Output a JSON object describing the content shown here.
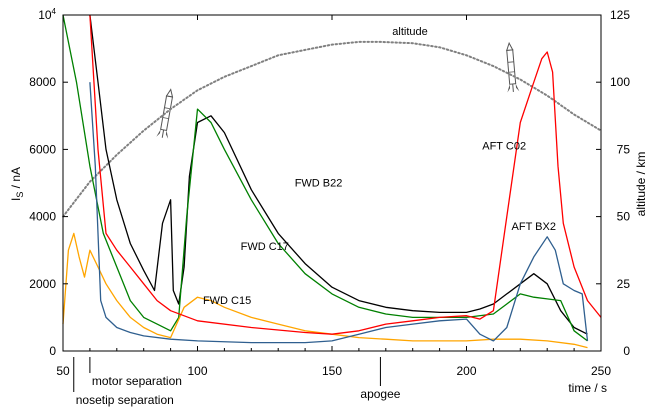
{
  "chart_data": {
    "type": "line",
    "xlabel": "time / s",
    "ylabel_left": "I",
    "ylabel_left_sub": "S",
    "ylabel_left_unit": " / nA",
    "ylabel_right": "altitude / km",
    "xlim": [
      50,
      250
    ],
    "ylim_left": [
      0,
      10000
    ],
    "ylim_right": [
      0,
      125
    ],
    "x_ticks": [
      50,
      100,
      150,
      200,
      250
    ],
    "y_left_ticks": [
      0,
      2000,
      4000,
      6000,
      8000
    ],
    "y_left_top_label_base": "10",
    "y_left_top_label_exp": "4",
    "y_right_ticks": [
      0,
      25,
      50,
      75,
      100,
      125
    ],
    "grid": false,
    "events": [
      {
        "t": 54,
        "label": "nosetip separation"
      },
      {
        "t": 60,
        "label": "motor separation"
      },
      {
        "t": 168,
        "label": "apogee"
      }
    ],
    "series": [
      {
        "name": "altitude",
        "axis": "right",
        "color": "#808080",
        "style": "dotted",
        "x": [
          50,
          60,
          70,
          80,
          90,
          100,
          110,
          120,
          130,
          140,
          150,
          160,
          168,
          180,
          190,
          200,
          210,
          220,
          230,
          240,
          250
        ],
        "y": [
          50,
          63,
          73,
          82,
          90,
          97,
          102,
          106,
          110,
          112,
          114,
          115,
          115,
          114.5,
          113,
          110,
          106,
          101,
          95,
          88,
          82
        ]
      },
      {
        "name": "FWD B22",
        "axis": "left",
        "color": "#000000",
        "x": [
          60,
          63,
          66,
          70,
          75,
          80,
          84,
          87,
          90,
          91,
          93,
          95,
          97,
          100,
          105,
          110,
          120,
          130,
          140,
          150,
          160,
          170,
          180,
          190,
          200,
          205,
          210,
          215,
          220,
          225,
          230,
          235,
          240,
          245
        ],
        "y": [
          10000,
          8000,
          6000,
          4500,
          3200,
          2400,
          1800,
          3800,
          4500,
          1800,
          1400,
          2500,
          5200,
          6800,
          7000,
          6500,
          4800,
          3500,
          2600,
          1900,
          1500,
          1300,
          1200,
          1150,
          1150,
          1250,
          1400,
          1700,
          2000,
          2300,
          2000,
          1200,
          700,
          500
        ]
      },
      {
        "name": "FWD C17",
        "axis": "left",
        "color": "#008000",
        "x": [
          50,
          55,
          60,
          65,
          70,
          75,
          80,
          85,
          90,
          93,
          96,
          100,
          105,
          110,
          120,
          130,
          140,
          150,
          160,
          170,
          180,
          190,
          200,
          210,
          215,
          220,
          225,
          230,
          235,
          240,
          245
        ],
        "y": [
          10000,
          8000,
          5500,
          3500,
          2500,
          1500,
          1000,
          800,
          600,
          1000,
          4000,
          7200,
          6800,
          6000,
          4500,
          3200,
          2300,
          1700,
          1300,
          1100,
          1000,
          1000,
          1000,
          1100,
          1400,
          1700,
          1600,
          1550,
          1500,
          600,
          300
        ]
      },
      {
        "name": "FWD C15",
        "axis": "left",
        "color": "#ffa500",
        "x": [
          50,
          52,
          54,
          56,
          58,
          60,
          63,
          66,
          70,
          75,
          80,
          85,
          90,
          95,
          100,
          105,
          110,
          120,
          130,
          140,
          150,
          160,
          170,
          180,
          190,
          200,
          210,
          220,
          230,
          240,
          245
        ],
        "y": [
          800,
          3000,
          3500,
          2800,
          2200,
          3000,
          2500,
          2000,
          1500,
          1000,
          700,
          500,
          400,
          1300,
          1600,
          1500,
          1300,
          1000,
          800,
          600,
          500,
          400,
          350,
          300,
          300,
          300,
          350,
          350,
          300,
          200,
          100
        ]
      },
      {
        "name": "AFT C02",
        "axis": "left",
        "color": "#ff0000",
        "x": [
          60,
          63,
          66,
          70,
          75,
          80,
          85,
          90,
          100,
          120,
          140,
          150,
          160,
          170,
          180,
          190,
          200,
          205,
          210,
          215,
          220,
          225,
          228,
          230,
          232,
          234,
          236,
          240,
          245,
          250
        ],
        "y": [
          10000,
          6000,
          3500,
          3000,
          2500,
          2000,
          1500,
          1200,
          900,
          700,
          550,
          500,
          600,
          800,
          900,
          1000,
          1050,
          950,
          1200,
          4000,
          6800,
          8000,
          8700,
          8900,
          8300,
          5500,
          3800,
          2500,
          1500,
          1000
        ]
      },
      {
        "name": "AFT BX2",
        "axis": "left",
        "color": "#2f5f8f",
        "x": [
          60,
          62,
          64,
          66,
          70,
          75,
          80,
          90,
          100,
          120,
          140,
          150,
          160,
          170,
          180,
          190,
          200,
          205,
          210,
          215,
          220,
          225,
          230,
          233,
          236,
          240,
          243,
          245
        ],
        "y": [
          8000,
          5500,
          1500,
          1000,
          700,
          550,
          450,
          350,
          300,
          250,
          250,
          300,
          500,
          700,
          800,
          900,
          950,
          500,
          300,
          700,
          2000,
          2800,
          3400,
          3000,
          2000,
          1800,
          1700,
          300
        ]
      }
    ],
    "labels": [
      {
        "text": "altitude",
        "x": 179,
        "y": 9400,
        "axis": "left"
      },
      {
        "text": "FWD B22",
        "x": 145,
        "y": 4900,
        "axis": "left"
      },
      {
        "text": "FWD C17",
        "x": 125,
        "y": 3000,
        "axis": "left"
      },
      {
        "text": "FWD C15",
        "x": 111,
        "y": 1400,
        "axis": "left"
      },
      {
        "text": "AFT C02",
        "x": 214,
        "y": 6000,
        "axis": "left"
      },
      {
        "text": "AFT BX2",
        "x": 225,
        "y": 3600,
        "axis": "left"
      }
    ]
  }
}
